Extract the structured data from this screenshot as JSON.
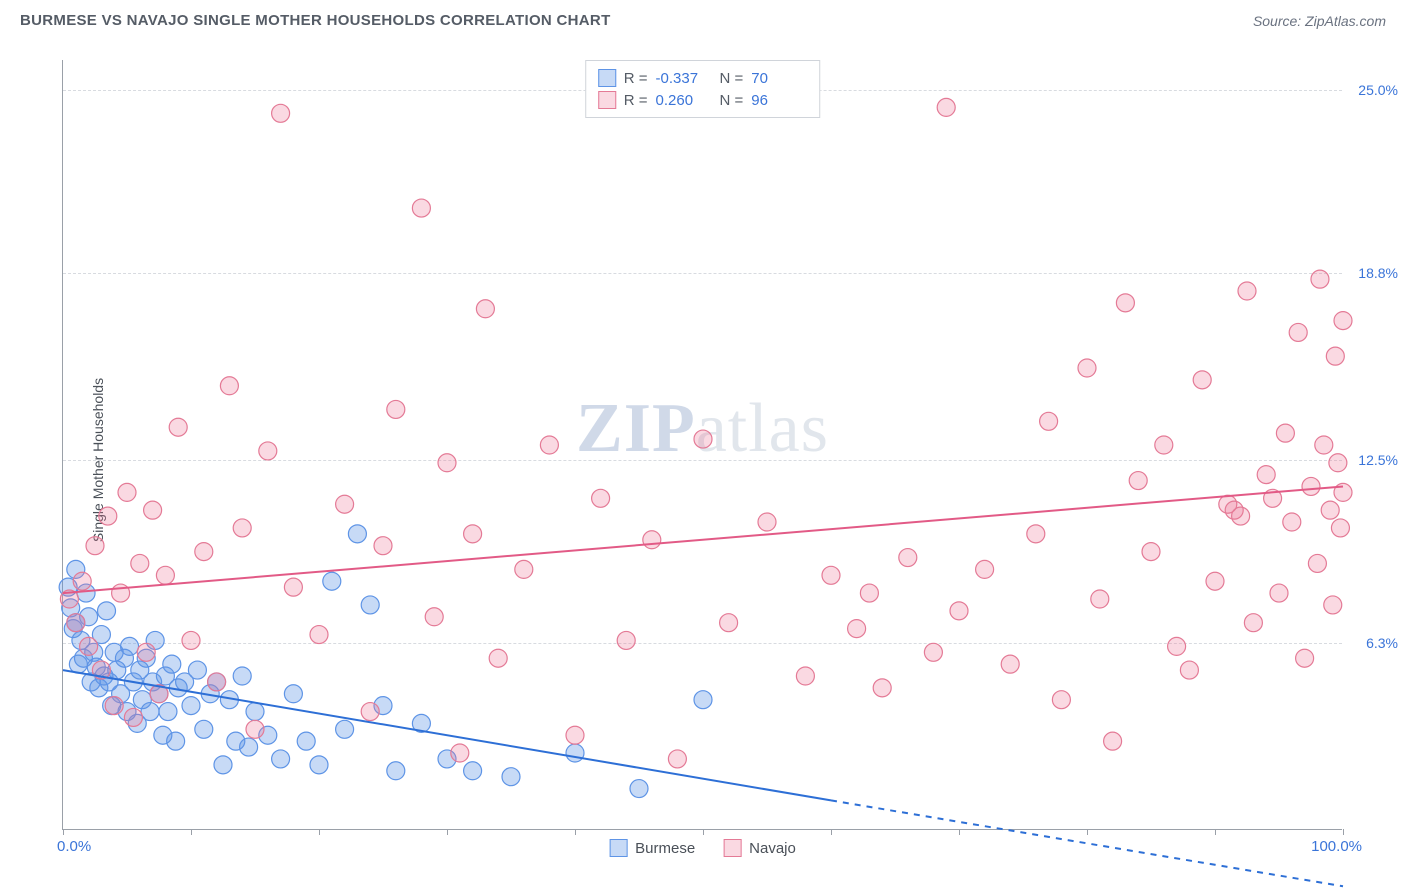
{
  "header": {
    "title": "BURMESE VS NAVAJO SINGLE MOTHER HOUSEHOLDS CORRELATION CHART",
    "source": "Source: ZipAtlas.com"
  },
  "chart": {
    "type": "scatter",
    "ylabel": "Single Mother Households",
    "watermark_left": "ZIP",
    "watermark_right": "atlas",
    "background_color": "#ffffff",
    "grid_color": "#d8dbe0",
    "axis_color": "#9aa0a8",
    "xlim": [
      0,
      100
    ],
    "ylim": [
      0,
      26
    ],
    "y_gridlines": [
      6.3,
      12.5,
      18.8,
      25.0
    ],
    "y_labels": [
      "6.3%",
      "12.5%",
      "18.8%",
      "25.0%"
    ],
    "x_ticks": [
      0,
      10,
      20,
      30,
      40,
      50,
      60,
      70,
      80,
      90,
      100
    ],
    "x_labels": {
      "min": "0.0%",
      "max": "100.0%"
    },
    "series": [
      {
        "name": "Burmese",
        "color_fill": "rgba(94,148,230,0.35)",
        "color_stroke": "#5e94e6",
        "marker_radius": 9,
        "R": "-0.337",
        "N": "70",
        "trend": {
          "x1": 0,
          "y1": 5.4,
          "x2": 60,
          "y2": 1.0,
          "solid_until_x": 60,
          "dash_to_x": 100,
          "dash_y": -1.9,
          "color": "#2d6fd6",
          "width": 2
        },
        "points": [
          [
            0.4,
            8.2
          ],
          [
            0.6,
            7.5
          ],
          [
            0.8,
            6.8
          ],
          [
            1.0,
            8.8
          ],
          [
            1.0,
            7.0
          ],
          [
            1.2,
            5.6
          ],
          [
            1.4,
            6.4
          ],
          [
            1.6,
            5.8
          ],
          [
            1.8,
            8.0
          ],
          [
            2.0,
            7.2
          ],
          [
            2.2,
            5.0
          ],
          [
            2.4,
            6.0
          ],
          [
            2.6,
            5.5
          ],
          [
            2.8,
            4.8
          ],
          [
            3.0,
            6.6
          ],
          [
            3.2,
            5.2
          ],
          [
            3.4,
            7.4
          ],
          [
            3.6,
            5.0
          ],
          [
            3.8,
            4.2
          ],
          [
            4.0,
            6.0
          ],
          [
            4.2,
            5.4
          ],
          [
            4.5,
            4.6
          ],
          [
            4.8,
            5.8
          ],
          [
            5.0,
            4.0
          ],
          [
            5.2,
            6.2
          ],
          [
            5.5,
            5.0
          ],
          [
            5.8,
            3.6
          ],
          [
            6.0,
            5.4
          ],
          [
            6.2,
            4.4
          ],
          [
            6.5,
            5.8
          ],
          [
            6.8,
            4.0
          ],
          [
            7.0,
            5.0
          ],
          [
            7.2,
            6.4
          ],
          [
            7.5,
            4.6
          ],
          [
            7.8,
            3.2
          ],
          [
            8.0,
            5.2
          ],
          [
            8.2,
            4.0
          ],
          [
            8.5,
            5.6
          ],
          [
            8.8,
            3.0
          ],
          [
            9.0,
            4.8
          ],
          [
            9.5,
            5.0
          ],
          [
            10.0,
            4.2
          ],
          [
            10.5,
            5.4
          ],
          [
            11.0,
            3.4
          ],
          [
            11.5,
            4.6
          ],
          [
            12.0,
            5.0
          ],
          [
            12.5,
            2.2
          ],
          [
            13.0,
            4.4
          ],
          [
            13.5,
            3.0
          ],
          [
            14.0,
            5.2
          ],
          [
            14.5,
            2.8
          ],
          [
            15.0,
            4.0
          ],
          [
            16.0,
            3.2
          ],
          [
            17.0,
            2.4
          ],
          [
            18.0,
            4.6
          ],
          [
            19.0,
            3.0
          ],
          [
            20.0,
            2.2
          ],
          [
            21.0,
            8.4
          ],
          [
            22.0,
            3.4
          ],
          [
            23.0,
            10.0
          ],
          [
            24.0,
            7.6
          ],
          [
            25.0,
            4.2
          ],
          [
            26.0,
            2.0
          ],
          [
            28.0,
            3.6
          ],
          [
            30.0,
            2.4
          ],
          [
            32.0,
            2.0
          ],
          [
            35.0,
            1.8
          ],
          [
            40.0,
            2.6
          ],
          [
            45.0,
            1.4
          ],
          [
            50.0,
            4.4
          ]
        ]
      },
      {
        "name": "Navajo",
        "color_fill": "rgba(236,120,150,0.28)",
        "color_stroke": "#e47a96",
        "marker_radius": 9,
        "R": "0.260",
        "N": "96",
        "trend": {
          "x1": 0,
          "y1": 8.0,
          "x2": 100,
          "y2": 11.6,
          "color": "#e25a86",
          "width": 2
        },
        "points": [
          [
            0.5,
            7.8
          ],
          [
            1.0,
            7.0
          ],
          [
            1.5,
            8.4
          ],
          [
            2.0,
            6.2
          ],
          [
            2.5,
            9.6
          ],
          [
            3.0,
            5.4
          ],
          [
            3.5,
            10.6
          ],
          [
            4.0,
            4.2
          ],
          [
            4.5,
            8.0
          ],
          [
            5.0,
            11.4
          ],
          [
            5.5,
            3.8
          ],
          [
            6.0,
            9.0
          ],
          [
            6.5,
            6.0
          ],
          [
            7.0,
            10.8
          ],
          [
            7.5,
            4.6
          ],
          [
            8.0,
            8.6
          ],
          [
            9.0,
            13.6
          ],
          [
            10.0,
            6.4
          ],
          [
            11.0,
            9.4
          ],
          [
            12.0,
            5.0
          ],
          [
            13.0,
            15.0
          ],
          [
            14.0,
            10.2
          ],
          [
            15.0,
            3.4
          ],
          [
            16.0,
            12.8
          ],
          [
            17.0,
            24.2
          ],
          [
            18.0,
            8.2
          ],
          [
            20.0,
            6.6
          ],
          [
            22.0,
            11.0
          ],
          [
            24.0,
            4.0
          ],
          [
            25.0,
            9.6
          ],
          [
            26.0,
            14.2
          ],
          [
            28.0,
            21.0
          ],
          [
            29.0,
            7.2
          ],
          [
            30.0,
            12.4
          ],
          [
            31.0,
            2.6
          ],
          [
            32.0,
            10.0
          ],
          [
            33.0,
            17.6
          ],
          [
            34.0,
            5.8
          ],
          [
            36.0,
            8.8
          ],
          [
            38.0,
            13.0
          ],
          [
            40.0,
            3.2
          ],
          [
            42.0,
            11.2
          ],
          [
            44.0,
            6.4
          ],
          [
            46.0,
            9.8
          ],
          [
            48.0,
            2.4
          ],
          [
            50.0,
            13.2
          ],
          [
            52.0,
            7.0
          ],
          [
            55.0,
            10.4
          ],
          [
            58.0,
            5.2
          ],
          [
            60.0,
            8.6
          ],
          [
            62.0,
            6.8
          ],
          [
            63.0,
            8.0
          ],
          [
            64.0,
            4.8
          ],
          [
            66.0,
            9.2
          ],
          [
            68.0,
            6.0
          ],
          [
            69.0,
            24.4
          ],
          [
            70.0,
            7.4
          ],
          [
            72.0,
            8.8
          ],
          [
            74.0,
            5.6
          ],
          [
            76.0,
            10.0
          ],
          [
            77.0,
            13.8
          ],
          [
            78.0,
            4.4
          ],
          [
            80.0,
            15.6
          ],
          [
            81.0,
            7.8
          ],
          [
            82.0,
            3.0
          ],
          [
            83.0,
            17.8
          ],
          [
            84.0,
            11.8
          ],
          [
            85.0,
            9.4
          ],
          [
            86.0,
            13.0
          ],
          [
            87.0,
            6.2
          ],
          [
            88.0,
            5.4
          ],
          [
            89.0,
            15.2
          ],
          [
            90.0,
            8.4
          ],
          [
            91.0,
            11.0
          ],
          [
            91.5,
            10.8
          ],
          [
            92.0,
            10.6
          ],
          [
            92.5,
            18.2
          ],
          [
            93.0,
            7.0
          ],
          [
            94.0,
            12.0
          ],
          [
            94.5,
            11.2
          ],
          [
            95.0,
            8.0
          ],
          [
            95.5,
            13.4
          ],
          [
            96.0,
            10.4
          ],
          [
            96.5,
            16.8
          ],
          [
            97.0,
            5.8
          ],
          [
            97.5,
            11.6
          ],
          [
            98.0,
            9.0
          ],
          [
            98.2,
            18.6
          ],
          [
            98.5,
            13.0
          ],
          [
            99.0,
            10.8
          ],
          [
            99.2,
            7.6
          ],
          [
            99.4,
            16.0
          ],
          [
            99.6,
            12.4
          ],
          [
            99.8,
            10.2
          ],
          [
            100.0,
            17.2
          ],
          [
            100.0,
            11.4
          ]
        ]
      }
    ],
    "legend_bottom": [
      {
        "label": "Burmese",
        "fill": "rgba(94,148,230,0.35)",
        "stroke": "#5e94e6"
      },
      {
        "label": "Navajo",
        "fill": "rgba(236,120,150,0.28)",
        "stroke": "#e47a96"
      }
    ]
  }
}
